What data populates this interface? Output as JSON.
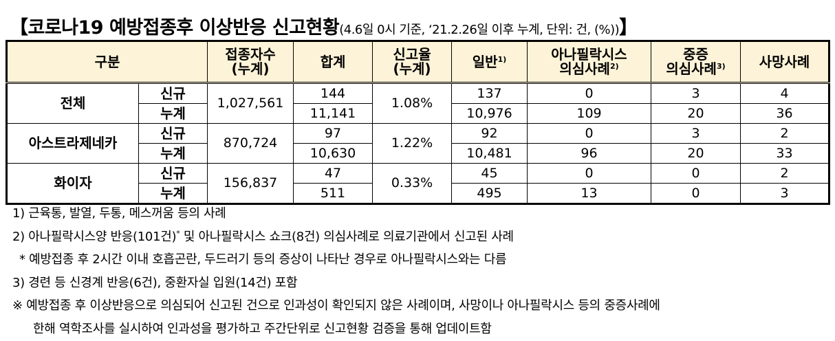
{
  "title": {
    "main": "【코로나19 예방접종후 이상반응 신고현황",
    "sub": "(4.6일 0시 기준, ‘21.2.26일 이후 누계, 단위: 건, (%))",
    "close": "】"
  },
  "table": {
    "headers": [
      {
        "lines": [
          "구분"
        ]
      },
      {
        "lines": [
          "접종자수",
          "(누계)"
        ]
      },
      {
        "lines": [
          "합계"
        ]
      },
      {
        "lines": [
          "신고율",
          "(누계)"
        ]
      },
      {
        "lines": [
          "일반"
        ],
        "note": "1)"
      },
      {
        "lines": [
          "아나필락시스",
          "의심사례"
        ],
        "note": "2)"
      },
      {
        "lines": [
          "중증",
          "의심사례"
        ],
        "note": "3)"
      },
      {
        "lines": [
          "사망사례"
        ]
      }
    ],
    "groups": [
      {
        "name": "전체",
        "vaccinated": "1,027,561",
        "rate": "1.08%",
        "rows": [
          {
            "label": "신규",
            "total": "144",
            "general": "137",
            "anaphylaxis": "0",
            "severe": "3",
            "death": "4"
          },
          {
            "label": "누계",
            "total": "11,141",
            "general": "10,976",
            "anaphylaxis": "109",
            "severe": "20",
            "death": "36"
          }
        ]
      },
      {
        "name": "아스트라제네카",
        "vaccinated": "870,724",
        "rate": "1.22%",
        "rows": [
          {
            "label": "신규",
            "total": "97",
            "general": "92",
            "anaphylaxis": "0",
            "severe": "3",
            "death": "2"
          },
          {
            "label": "누계",
            "total": "10,630",
            "general": "10,481",
            "anaphylaxis": "96",
            "severe": "20",
            "death": "33"
          }
        ]
      },
      {
        "name": "화이자",
        "vaccinated": "156,837",
        "rate": "0.33%",
        "rows": [
          {
            "label": "신규",
            "total": "47",
            "general": "45",
            "anaphylaxis": "0",
            "severe": "0",
            "death": "2"
          },
          {
            "label": "누계",
            "total": "511",
            "general": "495",
            "anaphylaxis": "13",
            "severe": "0",
            "death": "3"
          }
        ]
      }
    ]
  },
  "notes": [
    {
      "text": "1) 근육통, 발열, 두통, 메스꺼움 등의 사례"
    },
    {
      "text": "2) 아나필락시스양 반응(101건)",
      "sup": "*",
      "rest": " 및 아나필락시스 쇼크(8건) 의심사례로 의료기관에서 신고된 사례"
    },
    {
      "text": "* 예방접종 후 2시간 이내 호흡곤란, 두드러기 등의 증상이 나타난 경우로 아나필락시스와는 다름",
      "indent": 1
    },
    {
      "text": "3) 경련 등 신경계 반응(6건), 중환자실 입원(14건) 포함"
    },
    {
      "text": "※ 예방접종 후 이상반응으로 의심되어 신고된 건으로 인과성이 확인되지 않은 사례이며, 사망이나 아나필락시스 등의 중증사례에"
    },
    {
      "text": "한해 역학조사를 실시하여 인과성을 평가하고 주간단위로 신고현황 검증을 통해 업데이트함",
      "indent": 2
    }
  ]
}
